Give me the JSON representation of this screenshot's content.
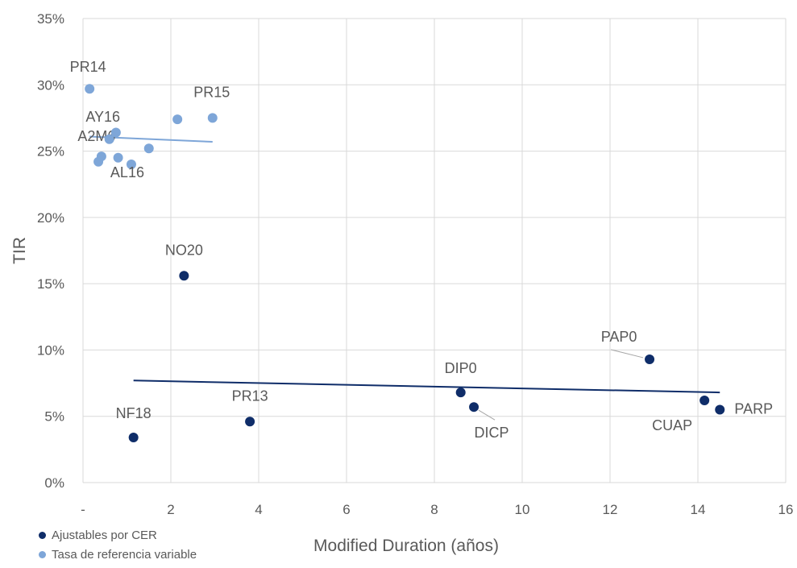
{
  "chart_data": {
    "type": "scatter",
    "xlabel": "Modified Duration (años)",
    "ylabel": "TIR",
    "xlim": [
      0,
      16
    ],
    "ylim": [
      0,
      35
    ],
    "x_ticks": [
      "-",
      "2",
      "4",
      "6",
      "8",
      "10",
      "12",
      "14",
      "16"
    ],
    "y_ticks": [
      "0%",
      "5%",
      "10%",
      "15%",
      "20%",
      "25%",
      "30%",
      "35%"
    ],
    "grid": true,
    "legend_position": "bottom-left",
    "series": [
      {
        "name": "Ajustables por CER",
        "color": "#0f2d69",
        "points": [
          {
            "label": "NF18",
            "x": 1.15,
            "y": 3.4
          },
          {
            "label": "NO20",
            "x": 2.3,
            "y": 15.6
          },
          {
            "label": "PR13",
            "x": 3.8,
            "y": 4.6
          },
          {
            "label": "DIP0",
            "x": 8.6,
            "y": 6.8
          },
          {
            "label": "DICP",
            "x": 8.9,
            "y": 5.7
          },
          {
            "label": "PAP0",
            "x": 12.9,
            "y": 9.3
          },
          {
            "label": "CUAP",
            "x": 14.15,
            "y": 6.2
          },
          {
            "label": "PARP",
            "x": 14.5,
            "y": 5.5
          }
        ],
        "trendline": [
          [
            1.15,
            7.7
          ],
          [
            14.5,
            6.8
          ]
        ]
      },
      {
        "name": "Tasa de referencia variable",
        "color": "#7ea6d8",
        "points": [
          {
            "label": "PR14",
            "x": 0.15,
            "y": 29.7
          },
          {
            "label": "",
            "x": 0.35,
            "y": 24.2
          },
          {
            "label": "A2M6",
            "x": 0.42,
            "y": 24.6
          },
          {
            "label": "AY16",
            "x": 0.6,
            "y": 25.9
          },
          {
            "label": "",
            "x": 0.75,
            "y": 26.4
          },
          {
            "label": "",
            "x": 0.8,
            "y": 24.5
          },
          {
            "label": "AL16",
            "x": 1.1,
            "y": 24.0
          },
          {
            "label": "",
            "x": 1.5,
            "y": 25.2
          },
          {
            "label": "",
            "x": 2.15,
            "y": 27.4
          },
          {
            "label": "PR15",
            "x": 2.95,
            "y": 27.5
          }
        ],
        "trendline": [
          [
            0.15,
            26.1
          ],
          [
            2.95,
            25.7
          ]
        ]
      }
    ]
  }
}
